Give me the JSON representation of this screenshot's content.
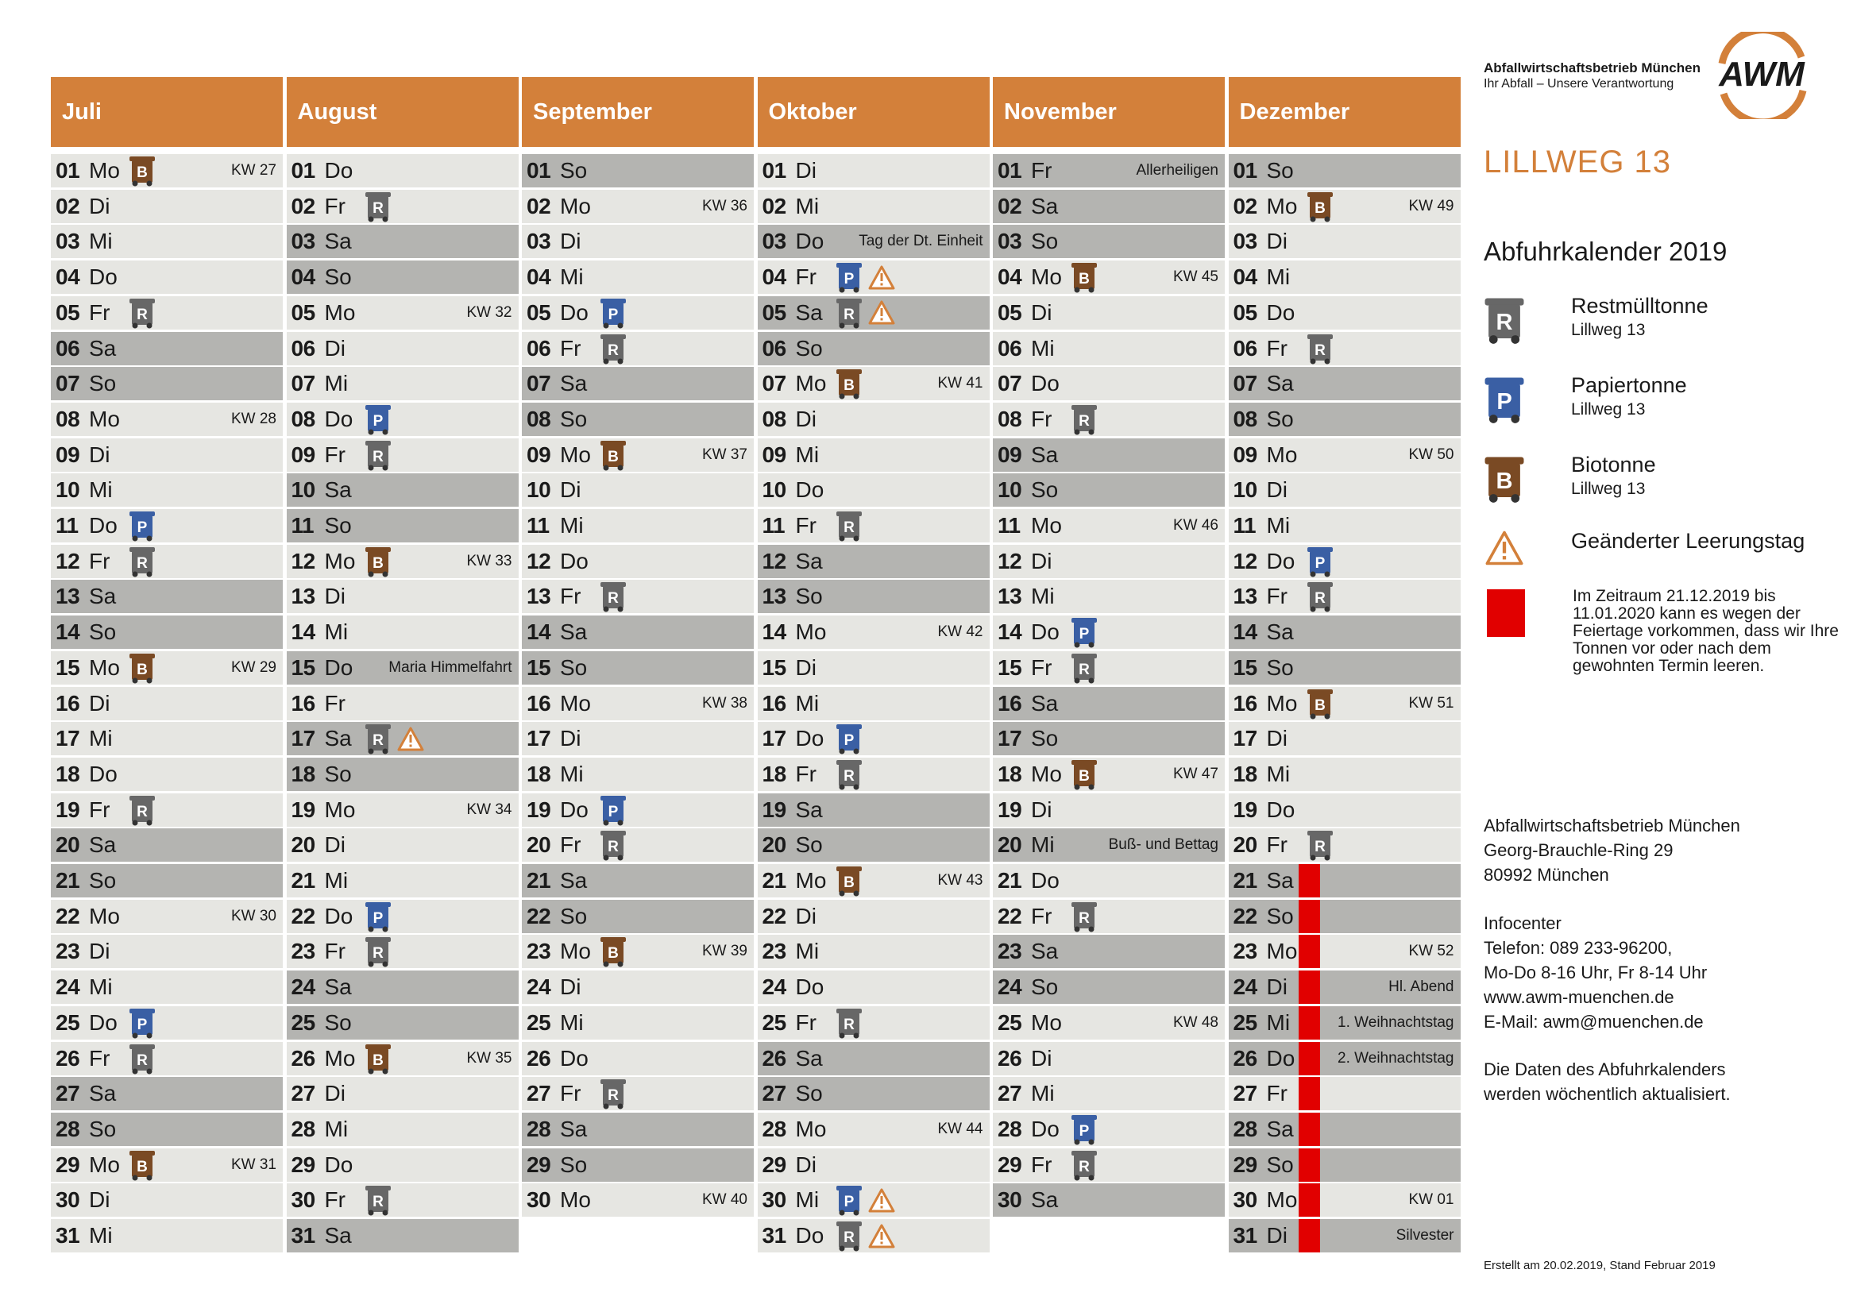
{
  "header": {
    "org_name": "Abfallwirtschaftsbetrieb München",
    "tagline": "Ihr Abfall – Unsere Verantwortung",
    "logo_text": "AWM",
    "street": "LILLWEG 13",
    "calendar_title": "Abfuhrkalender 2019"
  },
  "legend": [
    {
      "type": "R",
      "label": "Restmülltonne",
      "sub": "Lillweg 13"
    },
    {
      "type": "P",
      "label": "Papiertonne",
      "sub": "Lillweg 13"
    },
    {
      "type": "B",
      "label": "Biotonne",
      "sub": "Lillweg 13"
    },
    {
      "type": "W",
      "label": "Geänderter Leerungstag",
      "sub": ""
    }
  ],
  "holiday_note": "Im Zeitraum 21.12.2019 bis 11.01.2020 kann es wegen der Feiertage vorkommen, dass wir Ihre Tonnen vor oder nach dem gewohnten Termin leeren.",
  "address": {
    "lines": [
      "Abfallwirtschaftsbetrieb München",
      "Georg-Brauchle-Ring 29",
      "80992 München"
    ]
  },
  "infocenter": {
    "lines": [
      "Infocenter",
      "Telefon: 089 233-96200,",
      "Mo-Do 8-16 Uhr, Fr 8-14 Uhr",
      "www.awm-muenchen.de",
      "E-Mail: awm@muenchen.de"
    ]
  },
  "update_note": {
    "lines": [
      "Die Daten des Abfuhrkalenders",
      "werden wöchentlich aktualisiert."
    ]
  },
  "footer": "Erstellt am 20.02.2019, Stand Februar 2019",
  "colors": {
    "accent": "#d3803a",
    "rest": "#676767",
    "paper": "#3a5fa4",
    "bio": "#7a4a24",
    "warn": "#d3803a",
    "holiday": "#e10000"
  },
  "months": [
    {
      "name": "Juli",
      "days": [
        {
          "d": "01",
          "wd": "Mo",
          "bins": [
            "B"
          ],
          "kw": "KW 27"
        },
        {
          "d": "02",
          "wd": "Di"
        },
        {
          "d": "03",
          "wd": "Mi"
        },
        {
          "d": "04",
          "wd": "Do"
        },
        {
          "d": "05",
          "wd": "Fr",
          "bins": [
            "R"
          ]
        },
        {
          "d": "06",
          "wd": "Sa",
          "we": true
        },
        {
          "d": "07",
          "wd": "So",
          "we": true
        },
        {
          "d": "08",
          "wd": "Mo",
          "kw": "KW 28"
        },
        {
          "d": "09",
          "wd": "Di"
        },
        {
          "d": "10",
          "wd": "Mi"
        },
        {
          "d": "11",
          "wd": "Do",
          "bins": [
            "P"
          ]
        },
        {
          "d": "12",
          "wd": "Fr",
          "bins": [
            "R"
          ]
        },
        {
          "d": "13",
          "wd": "Sa",
          "we": true
        },
        {
          "d": "14",
          "wd": "So",
          "we": true
        },
        {
          "d": "15",
          "wd": "Mo",
          "bins": [
            "B"
          ],
          "kw": "KW 29"
        },
        {
          "d": "16",
          "wd": "Di"
        },
        {
          "d": "17",
          "wd": "Mi"
        },
        {
          "d": "18",
          "wd": "Do"
        },
        {
          "d": "19",
          "wd": "Fr",
          "bins": [
            "R"
          ]
        },
        {
          "d": "20",
          "wd": "Sa",
          "we": true
        },
        {
          "d": "21",
          "wd": "So",
          "we": true
        },
        {
          "d": "22",
          "wd": "Mo",
          "kw": "KW 30"
        },
        {
          "d": "23",
          "wd": "Di"
        },
        {
          "d": "24",
          "wd": "Mi"
        },
        {
          "d": "25",
          "wd": "Do",
          "bins": [
            "P"
          ]
        },
        {
          "d": "26",
          "wd": "Fr",
          "bins": [
            "R"
          ]
        },
        {
          "d": "27",
          "wd": "Sa",
          "we": true
        },
        {
          "d": "28",
          "wd": "So",
          "we": true
        },
        {
          "d": "29",
          "wd": "Mo",
          "bins": [
            "B"
          ],
          "kw": "KW 31"
        },
        {
          "d": "30",
          "wd": "Di"
        },
        {
          "d": "31",
          "wd": "Mi"
        }
      ]
    },
    {
      "name": "August",
      "days": [
        {
          "d": "01",
          "wd": "Do"
        },
        {
          "d": "02",
          "wd": "Fr",
          "bins": [
            "R"
          ]
        },
        {
          "d": "03",
          "wd": "Sa",
          "we": true
        },
        {
          "d": "04",
          "wd": "So",
          "we": true
        },
        {
          "d": "05",
          "wd": "Mo",
          "kw": "KW 32"
        },
        {
          "d": "06",
          "wd": "Di"
        },
        {
          "d": "07",
          "wd": "Mi"
        },
        {
          "d": "08",
          "wd": "Do",
          "bins": [
            "P"
          ]
        },
        {
          "d": "09",
          "wd": "Fr",
          "bins": [
            "R"
          ]
        },
        {
          "d": "10",
          "wd": "Sa",
          "we": true
        },
        {
          "d": "11",
          "wd": "So",
          "we": true
        },
        {
          "d": "12",
          "wd": "Mo",
          "bins": [
            "B"
          ],
          "kw": "KW 33"
        },
        {
          "d": "13",
          "wd": "Di"
        },
        {
          "d": "14",
          "wd": "Mi"
        },
        {
          "d": "15",
          "wd": "Do",
          "note": "Maria Himmelfahrt",
          "we": true
        },
        {
          "d": "16",
          "wd": "Fr"
        },
        {
          "d": "17",
          "wd": "Sa",
          "bins": [
            "R",
            "W"
          ],
          "we": true
        },
        {
          "d": "18",
          "wd": "So",
          "we": true
        },
        {
          "d": "19",
          "wd": "Mo",
          "kw": "KW 34"
        },
        {
          "d": "20",
          "wd": "Di"
        },
        {
          "d": "21",
          "wd": "Mi"
        },
        {
          "d": "22",
          "wd": "Do",
          "bins": [
            "P"
          ]
        },
        {
          "d": "23",
          "wd": "Fr",
          "bins": [
            "R"
          ]
        },
        {
          "d": "24",
          "wd": "Sa",
          "we": true
        },
        {
          "d": "25",
          "wd": "So",
          "we": true
        },
        {
          "d": "26",
          "wd": "Mo",
          "bins": [
            "B"
          ],
          "kw": "KW 35"
        },
        {
          "d": "27",
          "wd": "Di"
        },
        {
          "d": "28",
          "wd": "Mi"
        },
        {
          "d": "29",
          "wd": "Do"
        },
        {
          "d": "30",
          "wd": "Fr",
          "bins": [
            "R"
          ]
        },
        {
          "d": "31",
          "wd": "Sa",
          "we": true
        }
      ]
    },
    {
      "name": "September",
      "days": [
        {
          "d": "01",
          "wd": "So",
          "we": true
        },
        {
          "d": "02",
          "wd": "Mo",
          "kw": "KW 36"
        },
        {
          "d": "03",
          "wd": "Di"
        },
        {
          "d": "04",
          "wd": "Mi"
        },
        {
          "d": "05",
          "wd": "Do",
          "bins": [
            "P"
          ]
        },
        {
          "d": "06",
          "wd": "Fr",
          "bins": [
            "R"
          ]
        },
        {
          "d": "07",
          "wd": "Sa",
          "we": true
        },
        {
          "d": "08",
          "wd": "So",
          "we": true
        },
        {
          "d": "09",
          "wd": "Mo",
          "bins": [
            "B"
          ],
          "kw": "KW 37"
        },
        {
          "d": "10",
          "wd": "Di"
        },
        {
          "d": "11",
          "wd": "Mi"
        },
        {
          "d": "12",
          "wd": "Do"
        },
        {
          "d": "13",
          "wd": "Fr",
          "bins": [
            "R"
          ]
        },
        {
          "d": "14",
          "wd": "Sa",
          "we": true
        },
        {
          "d": "15",
          "wd": "So",
          "we": true
        },
        {
          "d": "16",
          "wd": "Mo",
          "kw": "KW 38"
        },
        {
          "d": "17",
          "wd": "Di"
        },
        {
          "d": "18",
          "wd": "Mi"
        },
        {
          "d": "19",
          "wd": "Do",
          "bins": [
            "P"
          ]
        },
        {
          "d": "20",
          "wd": "Fr",
          "bins": [
            "R"
          ]
        },
        {
          "d": "21",
          "wd": "Sa",
          "we": true
        },
        {
          "d": "22",
          "wd": "So",
          "we": true
        },
        {
          "d": "23",
          "wd": "Mo",
          "bins": [
            "B"
          ],
          "kw": "KW 39"
        },
        {
          "d": "24",
          "wd": "Di"
        },
        {
          "d": "25",
          "wd": "Mi"
        },
        {
          "d": "26",
          "wd": "Do"
        },
        {
          "d": "27",
          "wd": "Fr",
          "bins": [
            "R"
          ]
        },
        {
          "d": "28",
          "wd": "Sa",
          "we": true
        },
        {
          "d": "29",
          "wd": "So",
          "we": true
        },
        {
          "d": "30",
          "wd": "Mo",
          "kw": "KW 40"
        }
      ]
    },
    {
      "name": "Oktober",
      "days": [
        {
          "d": "01",
          "wd": "Di"
        },
        {
          "d": "02",
          "wd": "Mi"
        },
        {
          "d": "03",
          "wd": "Do",
          "note": "Tag der Dt. Einheit",
          "we": true
        },
        {
          "d": "04",
          "wd": "Fr",
          "bins": [
            "P",
            "W"
          ]
        },
        {
          "d": "05",
          "wd": "Sa",
          "bins": [
            "R",
            "W"
          ],
          "we": true
        },
        {
          "d": "06",
          "wd": "So",
          "we": true
        },
        {
          "d": "07",
          "wd": "Mo",
          "bins": [
            "B"
          ],
          "kw": "KW 41"
        },
        {
          "d": "08",
          "wd": "Di"
        },
        {
          "d": "09",
          "wd": "Mi"
        },
        {
          "d": "10",
          "wd": "Do"
        },
        {
          "d": "11",
          "wd": "Fr",
          "bins": [
            "R"
          ]
        },
        {
          "d": "12",
          "wd": "Sa",
          "we": true
        },
        {
          "d": "13",
          "wd": "So",
          "we": true
        },
        {
          "d": "14",
          "wd": "Mo",
          "kw": "KW 42"
        },
        {
          "d": "15",
          "wd": "Di"
        },
        {
          "d": "16",
          "wd": "Mi"
        },
        {
          "d": "17",
          "wd": "Do",
          "bins": [
            "P"
          ]
        },
        {
          "d": "18",
          "wd": "Fr",
          "bins": [
            "R"
          ]
        },
        {
          "d": "19",
          "wd": "Sa",
          "we": true
        },
        {
          "d": "20",
          "wd": "So",
          "we": true
        },
        {
          "d": "21",
          "wd": "Mo",
          "bins": [
            "B"
          ],
          "kw": "KW 43"
        },
        {
          "d": "22",
          "wd": "Di"
        },
        {
          "d": "23",
          "wd": "Mi"
        },
        {
          "d": "24",
          "wd": "Do"
        },
        {
          "d": "25",
          "wd": "Fr",
          "bins": [
            "R"
          ]
        },
        {
          "d": "26",
          "wd": "Sa",
          "we": true
        },
        {
          "d": "27",
          "wd": "So",
          "we": true
        },
        {
          "d": "28",
          "wd": "Mo",
          "kw": "KW 44"
        },
        {
          "d": "29",
          "wd": "Di"
        },
        {
          "d": "30",
          "wd": "Mi",
          "bins": [
            "P",
            "W"
          ]
        },
        {
          "d": "31",
          "wd": "Do",
          "bins": [
            "R",
            "W"
          ]
        }
      ]
    },
    {
      "name": "November",
      "days": [
        {
          "d": "01",
          "wd": "Fr",
          "note": "Allerheiligen",
          "we": true
        },
        {
          "d": "02",
          "wd": "Sa",
          "we": true
        },
        {
          "d": "03",
          "wd": "So",
          "we": true
        },
        {
          "d": "04",
          "wd": "Mo",
          "bins": [
            "B"
          ],
          "kw": "KW 45"
        },
        {
          "d": "05",
          "wd": "Di"
        },
        {
          "d": "06",
          "wd": "Mi"
        },
        {
          "d": "07",
          "wd": "Do"
        },
        {
          "d": "08",
          "wd": "Fr",
          "bins": [
            "R"
          ]
        },
        {
          "d": "09",
          "wd": "Sa",
          "we": true
        },
        {
          "d": "10",
          "wd": "So",
          "we": true
        },
        {
          "d": "11",
          "wd": "Mo",
          "kw": "KW 46"
        },
        {
          "d": "12",
          "wd": "Di"
        },
        {
          "d": "13",
          "wd": "Mi"
        },
        {
          "d": "14",
          "wd": "Do",
          "bins": [
            "P"
          ]
        },
        {
          "d": "15",
          "wd": "Fr",
          "bins": [
            "R"
          ]
        },
        {
          "d": "16",
          "wd": "Sa",
          "we": true
        },
        {
          "d": "17",
          "wd": "So",
          "we": true
        },
        {
          "d": "18",
          "wd": "Mo",
          "bins": [
            "B"
          ],
          "kw": "KW 47"
        },
        {
          "d": "19",
          "wd": "Di"
        },
        {
          "d": "20",
          "wd": "Mi",
          "note": "Buß- und Bettag",
          "we": true
        },
        {
          "d": "21",
          "wd": "Do"
        },
        {
          "d": "22",
          "wd": "Fr",
          "bins": [
            "R"
          ]
        },
        {
          "d": "23",
          "wd": "Sa",
          "we": true
        },
        {
          "d": "24",
          "wd": "So",
          "we": true
        },
        {
          "d": "25",
          "wd": "Mo",
          "kw": "KW 48"
        },
        {
          "d": "26",
          "wd": "Di"
        },
        {
          "d": "27",
          "wd": "Mi"
        },
        {
          "d": "28",
          "wd": "Do",
          "bins": [
            "P"
          ]
        },
        {
          "d": "29",
          "wd": "Fr",
          "bins": [
            "R"
          ]
        },
        {
          "d": "30",
          "wd": "Sa",
          "we": true
        }
      ]
    },
    {
      "name": "Dezember",
      "days": [
        {
          "d": "01",
          "wd": "So",
          "we": true
        },
        {
          "d": "02",
          "wd": "Mo",
          "bins": [
            "B"
          ],
          "kw": "KW 49"
        },
        {
          "d": "03",
          "wd": "Di"
        },
        {
          "d": "04",
          "wd": "Mi"
        },
        {
          "d": "05",
          "wd": "Do"
        },
        {
          "d": "06",
          "wd": "Fr",
          "bins": [
            "R"
          ]
        },
        {
          "d": "07",
          "wd": "Sa",
          "we": true
        },
        {
          "d": "08",
          "wd": "So",
          "we": true
        },
        {
          "d": "09",
          "wd": "Mo",
          "kw": "KW 50"
        },
        {
          "d": "10",
          "wd": "Di"
        },
        {
          "d": "11",
          "wd": "Mi"
        },
        {
          "d": "12",
          "wd": "Do",
          "bins": [
            "P"
          ]
        },
        {
          "d": "13",
          "wd": "Fr",
          "bins": [
            "R"
          ]
        },
        {
          "d": "14",
          "wd": "Sa",
          "we": true
        },
        {
          "d": "15",
          "wd": "So",
          "we": true
        },
        {
          "d": "16",
          "wd": "Mo",
          "bins": [
            "B"
          ],
          "kw": "KW 51"
        },
        {
          "d": "17",
          "wd": "Di"
        },
        {
          "d": "18",
          "wd": "Mi"
        },
        {
          "d": "19",
          "wd": "Do"
        },
        {
          "d": "20",
          "wd": "Fr",
          "bins": [
            "R"
          ]
        },
        {
          "d": "21",
          "wd": "Sa",
          "we": true,
          "red": true
        },
        {
          "d": "22",
          "wd": "So",
          "we": true,
          "red": true
        },
        {
          "d": "23",
          "wd": "Mo",
          "kw": "KW 52",
          "red": true
        },
        {
          "d": "24",
          "wd": "Di",
          "note": "Hl. Abend",
          "we": true,
          "red": true
        },
        {
          "d": "25",
          "wd": "Mi",
          "note": "1. Weihnachtstag",
          "we": true,
          "red": true
        },
        {
          "d": "26",
          "wd": "Do",
          "note": "2. Weihnachtstag",
          "we": true,
          "red": true
        },
        {
          "d": "27",
          "wd": "Fr",
          "red": true
        },
        {
          "d": "28",
          "wd": "Sa",
          "we": true,
          "red": true
        },
        {
          "d": "29",
          "wd": "So",
          "we": true,
          "red": true
        },
        {
          "d": "30",
          "wd": "Mo",
          "kw": "KW 01",
          "red": true
        },
        {
          "d": "31",
          "wd": "Di",
          "note": "Silvester",
          "we": true,
          "red": true
        }
      ]
    }
  ]
}
